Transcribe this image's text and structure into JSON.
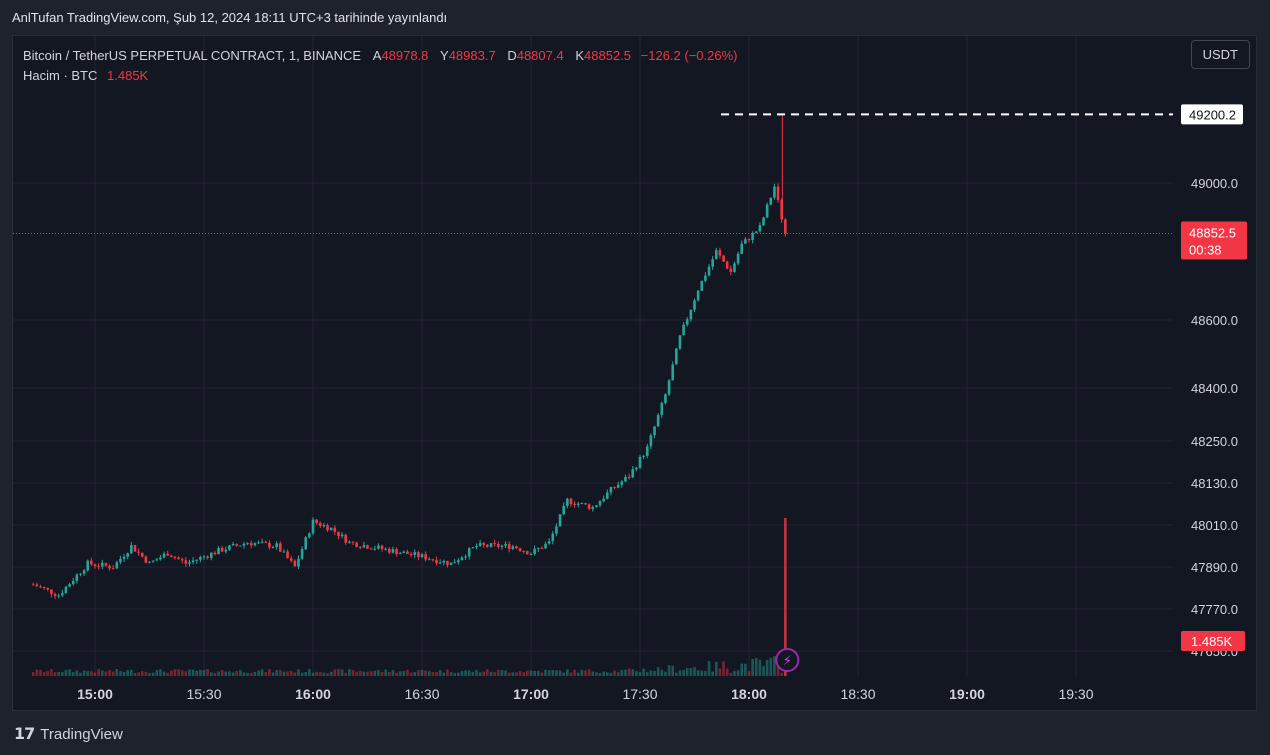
{
  "header": {
    "published": "AnlTufan TradingView.com, Şub 12, 2024 18:11 UTC+3 tarihinde yayınlandı"
  },
  "legend": {
    "symbol": "Bitcoin / TetherUS PERPETUAL CONTRACT, 1, BINANCE",
    "open_label": "A",
    "open": "48978.8",
    "high_label": "Y",
    "high": "48983.7",
    "low_label": "D",
    "low": "48807.4",
    "close_label": "K",
    "close": "48852.5",
    "change": "−126.2 (−0.26%)",
    "volume_label": "Hacim · BTC",
    "volume": "1.485K"
  },
  "currency_button": "USDT",
  "footer": {
    "brand": "TradingView"
  },
  "chart_data": {
    "type": "candlestick",
    "x_ticks": [
      "15:00",
      "15:30",
      "16:00",
      "16:30",
      "17:00",
      "17:30",
      "18:00",
      "18:30",
      "19:00",
      "19:30"
    ],
    "y_ticks": [
      "49000.0",
      "48600.0",
      "48400.0",
      "48250.0",
      "48130.0",
      "48010.0",
      "47890.0",
      "47770.0",
      "47650.0"
    ],
    "high_marker": "49200.2",
    "current_price": "48852.5",
    "countdown": "00:38",
    "volume_badge": "1.485K",
    "colors": {
      "up": "#26a69a",
      "down": "#f23645",
      "bg": "#131722",
      "grid": "#232632"
    },
    "anchors": [
      [
        "14:43",
        47840
      ],
      [
        "14:50",
        47810
      ],
      [
        "14:58",
        47900
      ],
      [
        "15:05",
        47890
      ],
      [
        "15:10",
        47950
      ],
      [
        "15:15",
        47900
      ],
      [
        "15:20",
        47930
      ],
      [
        "15:25",
        47900
      ],
      [
        "15:35",
        47940
      ],
      [
        "15:42",
        47960
      ],
      [
        "15:50",
        47950
      ],
      [
        "15:55",
        47890
      ],
      [
        "16:00",
        48020
      ],
      [
        "16:05",
        48000
      ],
      [
        "16:10",
        47960
      ],
      [
        "16:20",
        47940
      ],
      [
        "16:30",
        47920
      ],
      [
        "16:38",
        47900
      ],
      [
        "16:45",
        47950
      ],
      [
        "16:55",
        47950
      ],
      [
        "17:00",
        47930
      ],
      [
        "17:05",
        47960
      ],
      [
        "17:10",
        48080
      ],
      [
        "17:17",
        48060
      ],
      [
        "17:22",
        48110
      ],
      [
        "17:27",
        48150
      ],
      [
        "17:32",
        48230
      ],
      [
        "17:37",
        48380
      ],
      [
        "17:41",
        48550
      ],
      [
        "17:46",
        48690
      ],
      [
        "17:51",
        48800
      ],
      [
        "17:55",
        48740
      ],
      [
        "17:58",
        48820
      ],
      [
        "18:03",
        48870
      ],
      [
        "18:07",
        48990
      ],
      [
        "18:10",
        48852.5
      ]
    ]
  }
}
